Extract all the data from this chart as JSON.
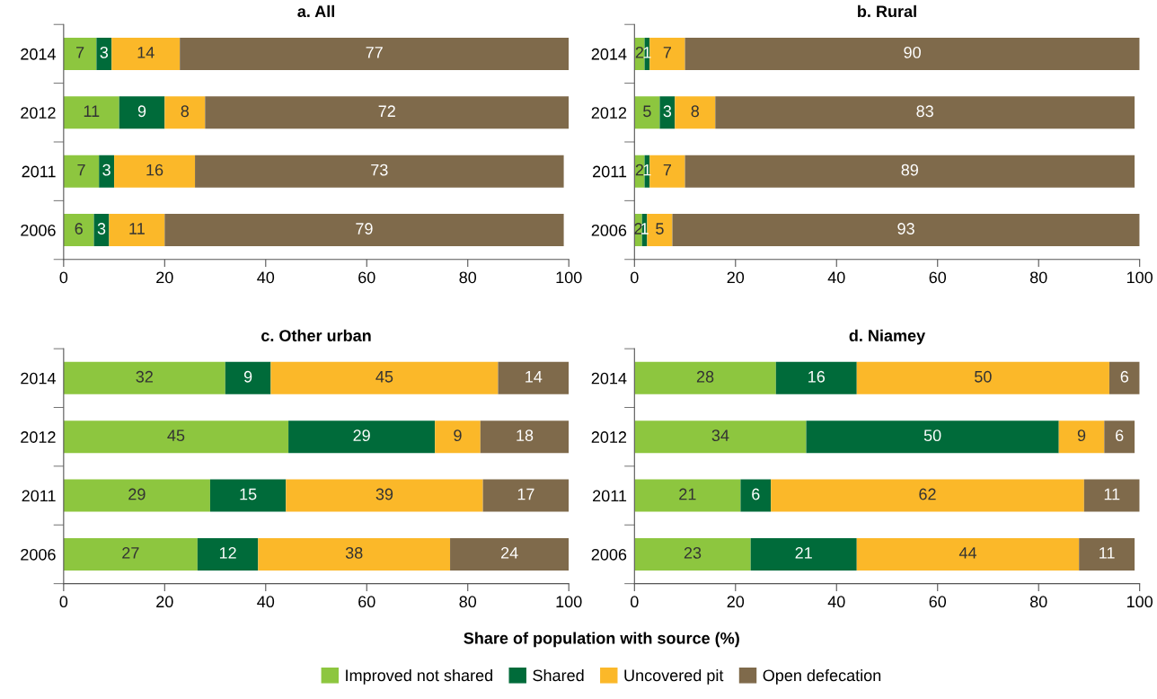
{
  "chart_data": [
    {
      "type": "bar",
      "orientation": "horizontal",
      "stacked": true,
      "title": "a. All",
      "categories": [
        "2014",
        "2012",
        "2011",
        "2006"
      ],
      "xlim": [
        0,
        100
      ],
      "xticks": [
        0,
        20,
        40,
        60,
        80,
        100
      ],
      "grid": false,
      "legend": "bottom",
      "series": [
        {
          "name": "Improved not shared",
          "color": "#8dc63f",
          "values": [
            6.5,
            11,
            7,
            6
          ],
          "value_labels": [
            "7",
            "11",
            "7",
            "6"
          ]
        },
        {
          "name": "Shared",
          "color": "#006b3a",
          "values": [
            3,
            9,
            3,
            3
          ],
          "value_labels": [
            "3",
            "9",
            "3",
            "3"
          ]
        },
        {
          "name": "Uncovered pit",
          "color": "#fbb829",
          "values": [
            13.5,
            8,
            16,
            11
          ],
          "value_labels": [
            "14",
            "8",
            "16",
            "11"
          ]
        },
        {
          "name": "Open defecation",
          "color": "#7f6a4b",
          "values": [
            77,
            72,
            73,
            79
          ],
          "value_labels": [
            "77",
            "72",
            "73",
            "79"
          ]
        }
      ]
    },
    {
      "type": "bar",
      "orientation": "horizontal",
      "stacked": true,
      "title": "b. Rural",
      "categories": [
        "2014",
        "2012",
        "2011",
        "2006"
      ],
      "xlim": [
        0,
        100
      ],
      "xticks": [
        0,
        20,
        40,
        60,
        80,
        100
      ],
      "grid": false,
      "series": [
        {
          "color": "#8dc63f",
          "values": [
            2,
            5,
            2,
            1.5
          ],
          "value_labels": [
            "2",
            "5",
            "2",
            "2"
          ]
        },
        {
          "color": "#006b3a",
          "values": [
            1,
            3,
            1,
            1
          ],
          "value_labels": [
            "1",
            "3",
            "1",
            "1"
          ]
        },
        {
          "color": "#fbb829",
          "values": [
            7,
            8,
            7,
            5
          ],
          "value_labels": [
            "7",
            "8",
            "7",
            "5"
          ]
        },
        {
          "color": "#7f6a4b",
          "values": [
            90,
            83,
            89,
            92.5
          ],
          "value_labels": [
            "90",
            "83",
            "89",
            "93"
          ]
        }
      ]
    },
    {
      "type": "bar",
      "orientation": "horizontal",
      "stacked": true,
      "title": "c. Other urban",
      "categories": [
        "2014",
        "2012",
        "2011",
        "2006"
      ],
      "xlim": [
        0,
        100
      ],
      "xticks": [
        0,
        20,
        40,
        60,
        80,
        100
      ],
      "grid": false,
      "series": [
        {
          "color": "#8dc63f",
          "values": [
            32,
            44.5,
            29,
            26.5
          ],
          "value_labels": [
            "32",
            "45",
            "29",
            "27"
          ]
        },
        {
          "color": "#006b3a",
          "values": [
            9,
            29,
            15,
            12
          ],
          "value_labels": [
            "9",
            "29",
            "15",
            "12"
          ]
        },
        {
          "color": "#fbb829",
          "values": [
            45,
            9,
            39,
            38
          ],
          "value_labels": [
            "45",
            "9",
            "39",
            "38"
          ]
        },
        {
          "color": "#7f6a4b",
          "values": [
            14,
            17.5,
            17,
            23.5
          ],
          "value_labels": [
            "14",
            "18",
            "17",
            "24"
          ]
        }
      ]
    },
    {
      "type": "bar",
      "orientation": "horizontal",
      "stacked": true,
      "data_labels": true,
      "title": "d. Niamey",
      "categories": [
        "2014",
        "2012",
        "2011",
        "2006"
      ],
      "xlim": [
        0,
        100
      ],
      "xticks": [
        0,
        20,
        40,
        60,
        80,
        100
      ],
      "grid": false,
      "xlabel": "Share of population with source (%)",
      "series": [
        {
          "color": "#8dc63f",
          "values": [
            28,
            34,
            21,
            23
          ]
        },
        {
          "color": "#006b3a",
          "values": [
            16,
            50,
            6,
            21
          ]
        },
        {
          "color": "#fbb829",
          "values": [
            50,
            9,
            62,
            44
          ]
        },
        {
          "color": "#7f6a4b",
          "values": [
            6,
            6,
            11,
            11
          ]
        }
      ]
    }
  ]
}
